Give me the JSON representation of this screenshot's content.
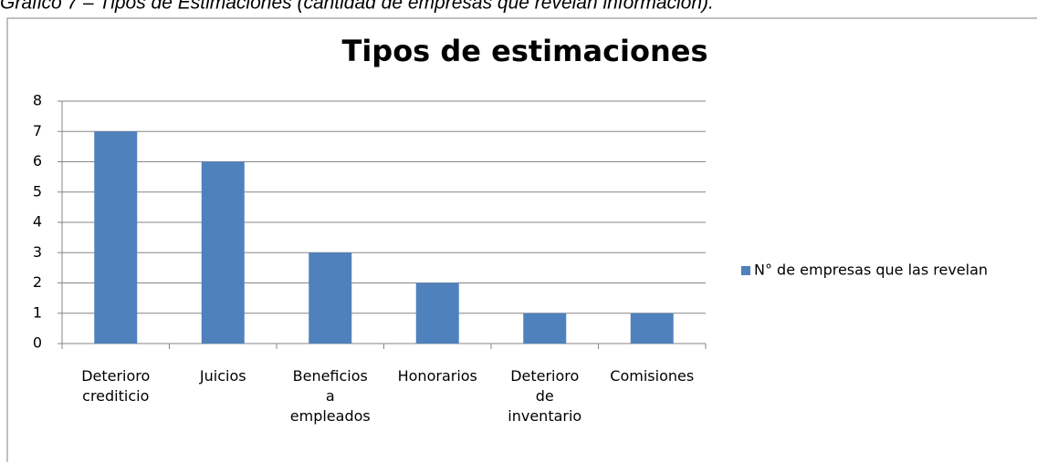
{
  "caption": "Gráfico 7 – Tipos de Estimaciones (cantidad de empresas que revelan información).",
  "chart_data": {
    "type": "bar",
    "title": "Tipos de estimaciones",
    "categories": [
      "Deterioro crediticio",
      "Juicios",
      "Beneficios a empleados",
      "Honorarios",
      "Deterioro de inventario",
      "Comisiones"
    ],
    "series": [
      {
        "name": "N° de empresas que las revelan",
        "color": "#4f81bd",
        "values": [
          7,
          6,
          3,
          2,
          1,
          1
        ]
      }
    ],
    "ylim": [
      0,
      8
    ],
    "yticks": [
      0,
      1,
      2,
      3,
      4,
      5,
      6,
      7,
      8
    ],
    "grid": true,
    "legend": "right"
  }
}
